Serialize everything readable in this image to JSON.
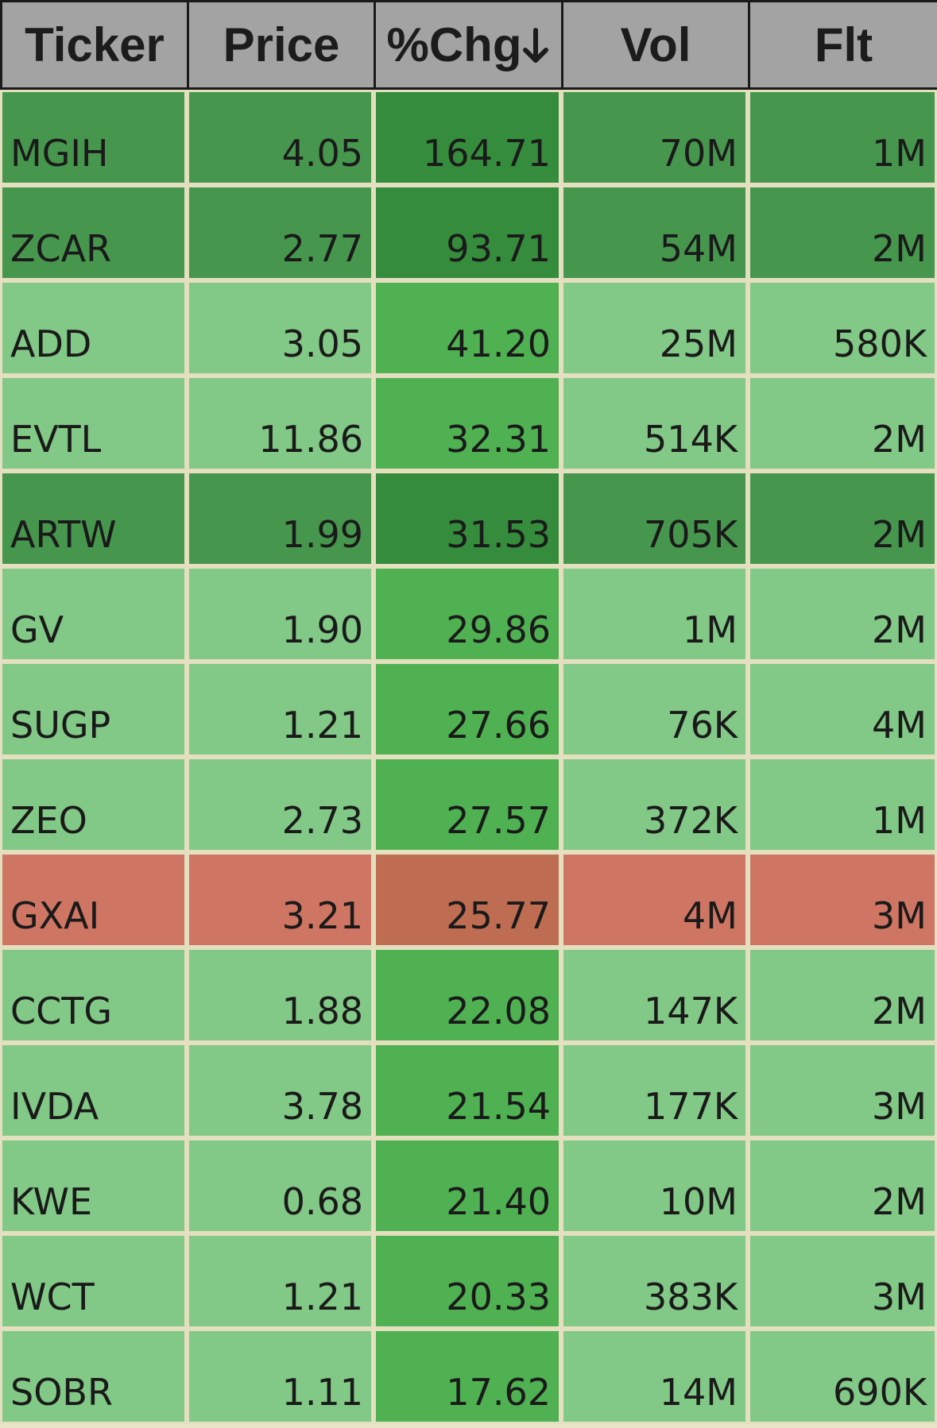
{
  "header": {
    "ticker": "Ticker",
    "price": "Price",
    "chg": "%Chg",
    "chg_sort_icon": "arrow-down-icon",
    "vol": "Vol",
    "flt": "Flt"
  },
  "colors": {
    "dark_green": "#47964e",
    "light_green": "#82c886",
    "red": "#cf7563",
    "header_gray": "#a3a3a3"
  },
  "rows": [
    {
      "ticker": "MGIH",
      "price": "4.05",
      "chg": "164.71",
      "vol": "70M",
      "flt": "1M",
      "tone": "dark"
    },
    {
      "ticker": "ZCAR",
      "price": "2.77",
      "chg": "93.71",
      "vol": "54M",
      "flt": "2M",
      "tone": "dark"
    },
    {
      "ticker": "ADD",
      "price": "3.05",
      "chg": "41.20",
      "vol": "25M",
      "flt": "580K",
      "tone": "light"
    },
    {
      "ticker": "EVTL",
      "price": "11.86",
      "chg": "32.31",
      "vol": "514K",
      "flt": "2M",
      "tone": "light"
    },
    {
      "ticker": "ARTW",
      "price": "1.99",
      "chg": "31.53",
      "vol": "705K",
      "flt": "2M",
      "tone": "dark"
    },
    {
      "ticker": "GV",
      "price": "1.90",
      "chg": "29.86",
      "vol": "1M",
      "flt": "2M",
      "tone": "light"
    },
    {
      "ticker": "SUGP",
      "price": "1.21",
      "chg": "27.66",
      "vol": "76K",
      "flt": "4M",
      "tone": "light"
    },
    {
      "ticker": "ZEO",
      "price": "2.73",
      "chg": "27.57",
      "vol": "372K",
      "flt": "1M",
      "tone": "light"
    },
    {
      "ticker": "GXAI",
      "price": "3.21",
      "chg": "25.77",
      "vol": "4M",
      "flt": "3M",
      "tone": "red"
    },
    {
      "ticker": "CCTG",
      "price": "1.88",
      "chg": "22.08",
      "vol": "147K",
      "flt": "2M",
      "tone": "light"
    },
    {
      "ticker": "IVDA",
      "price": "3.78",
      "chg": "21.54",
      "vol": "177K",
      "flt": "3M",
      "tone": "light"
    },
    {
      "ticker": "KWE",
      "price": "0.68",
      "chg": "21.40",
      "vol": "10M",
      "flt": "2M",
      "tone": "light"
    },
    {
      "ticker": "WCT",
      "price": "1.21",
      "chg": "20.33",
      "vol": "383K",
      "flt": "3M",
      "tone": "light"
    },
    {
      "ticker": "SOBR",
      "price": "1.11",
      "chg": "17.62",
      "vol": "14M",
      "flt": "690K",
      "tone": "light"
    }
  ]
}
